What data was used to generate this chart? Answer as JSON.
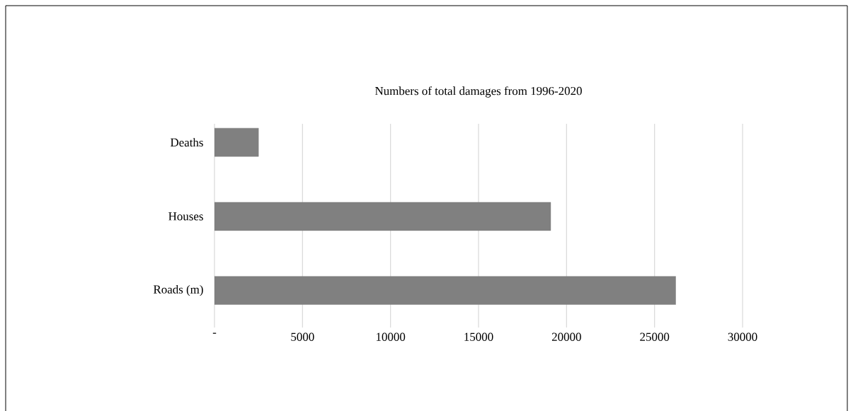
{
  "chart_data": {
    "type": "bar",
    "orientation": "horizontal",
    "title": "Numbers of total damages from 1996-2020",
    "categories": [
      "Deaths",
      "Houses",
      "Roads (m)"
    ],
    "values": [
      2500,
      19100,
      26200
    ],
    "color": "#808080",
    "xlim": [
      0,
      30000
    ],
    "xticks": [
      {
        "value": 0,
        "label": "-"
      },
      5000,
      10000,
      15000,
      20000,
      25000,
      30000
    ],
    "grid": "x"
  }
}
